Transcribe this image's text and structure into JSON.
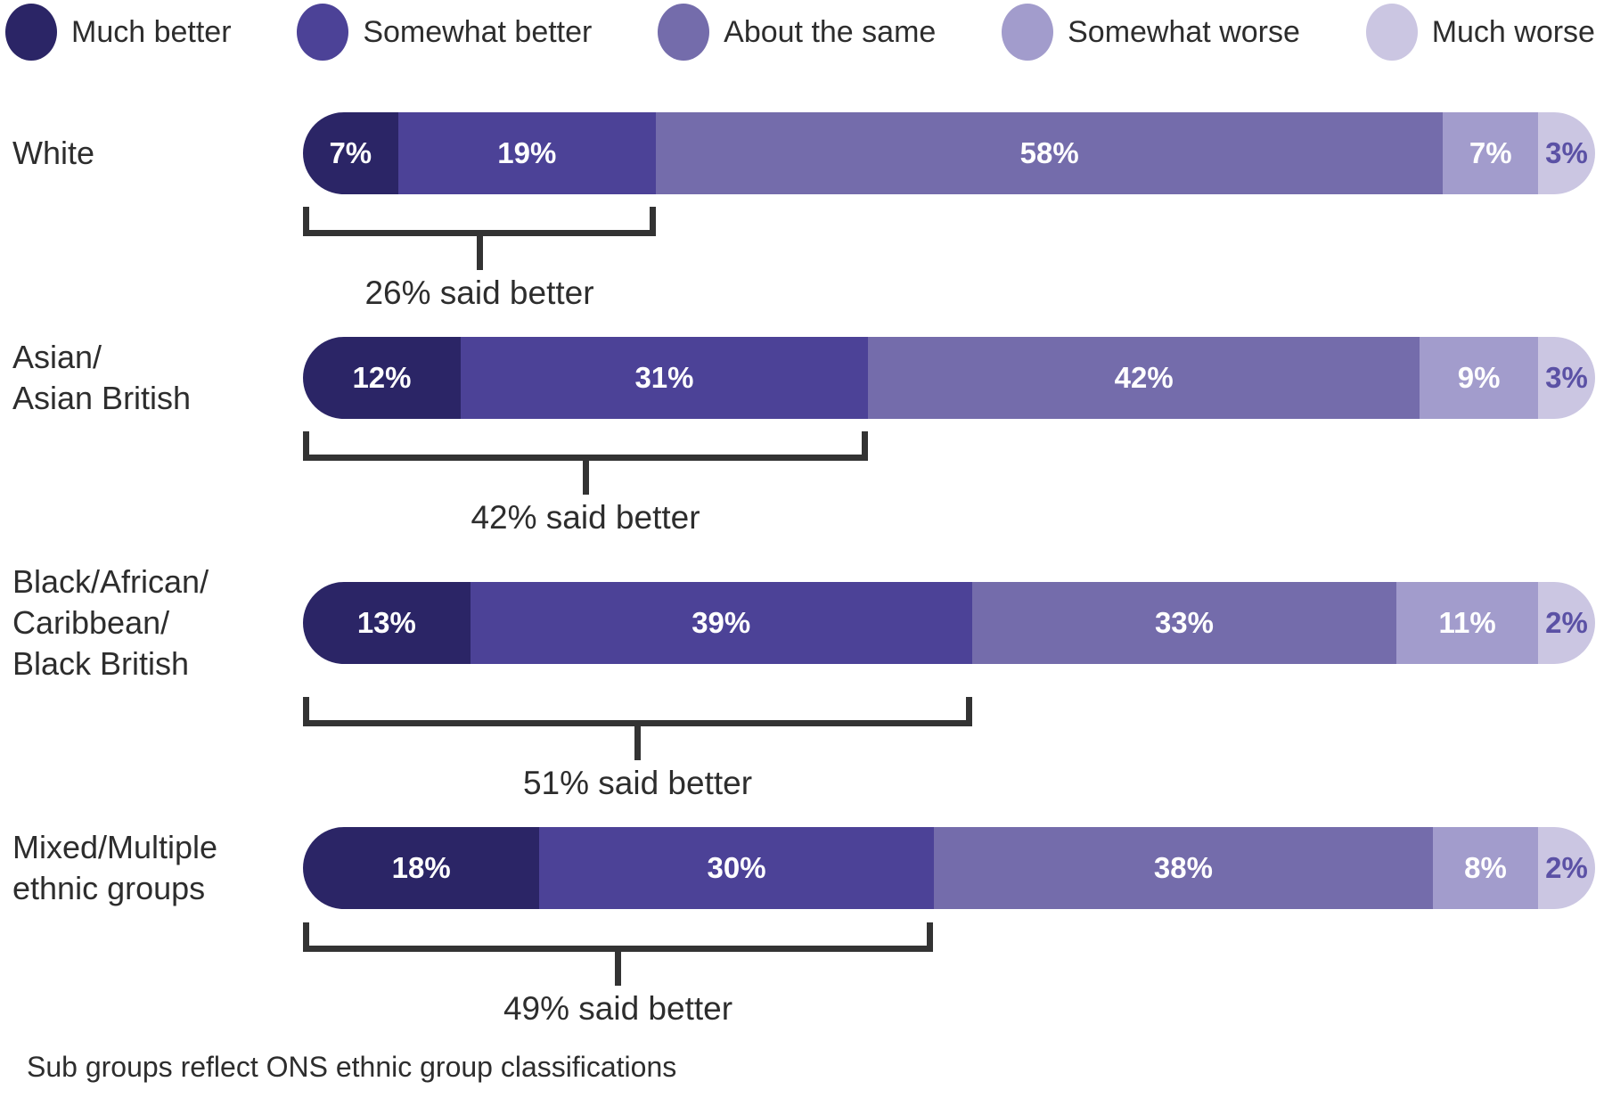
{
  "footnote": "Sub groups reflect ONS ethnic group classifications",
  "text_color": "#2d2d2d",
  "bracket_color": "#333333",
  "chart_data": {
    "type": "bar",
    "orientation": "horizontal-stacked",
    "unit": "%",
    "xlim": [
      0,
      100
    ],
    "axis_visible": false,
    "grid": false,
    "legend_position": "top",
    "bar_shape": "pill-rounded-ends",
    "categories": [
      "White",
      "Asian/Asian British",
      "Black/African/Caribbean/Black British",
      "Mixed/Multiple ethnic groups"
    ],
    "category_label_lines": [
      [
        "White"
      ],
      [
        "Asian/",
        "Asian British"
      ],
      [
        "Black/African/",
        "Caribbean/",
        "Black British"
      ],
      [
        "Mixed/Multiple",
        "ethnic groups"
      ]
    ],
    "series": [
      {
        "name": "Much better",
        "color": "#2B2566",
        "value_text_color": "#FFFFFF",
        "values": [
          7,
          12,
          13,
          18
        ]
      },
      {
        "name": "Somewhat better",
        "color": "#4C4297",
        "value_text_color": "#FFFFFF",
        "values": [
          19,
          31,
          39,
          30
        ]
      },
      {
        "name": "About the same",
        "color": "#746CAB",
        "value_text_color": "#FFFFFF",
        "values": [
          58,
          42,
          33,
          38
        ]
      },
      {
        "name": "Somewhat worse",
        "color": "#A29CCC",
        "value_text_color": "#FFFFFF",
        "values": [
          7,
          9,
          11,
          8
        ]
      },
      {
        "name": "Much worse",
        "color": "#CBC6E2",
        "value_text_color": "#5B51A5",
        "values": [
          3,
          3,
          2,
          2
        ]
      }
    ],
    "annotations": {
      "span_series": [
        "Much better",
        "Somewhat better"
      ],
      "labels": [
        "26% said better",
        "42% said better",
        "51% said better",
        "49% said better"
      ]
    }
  }
}
